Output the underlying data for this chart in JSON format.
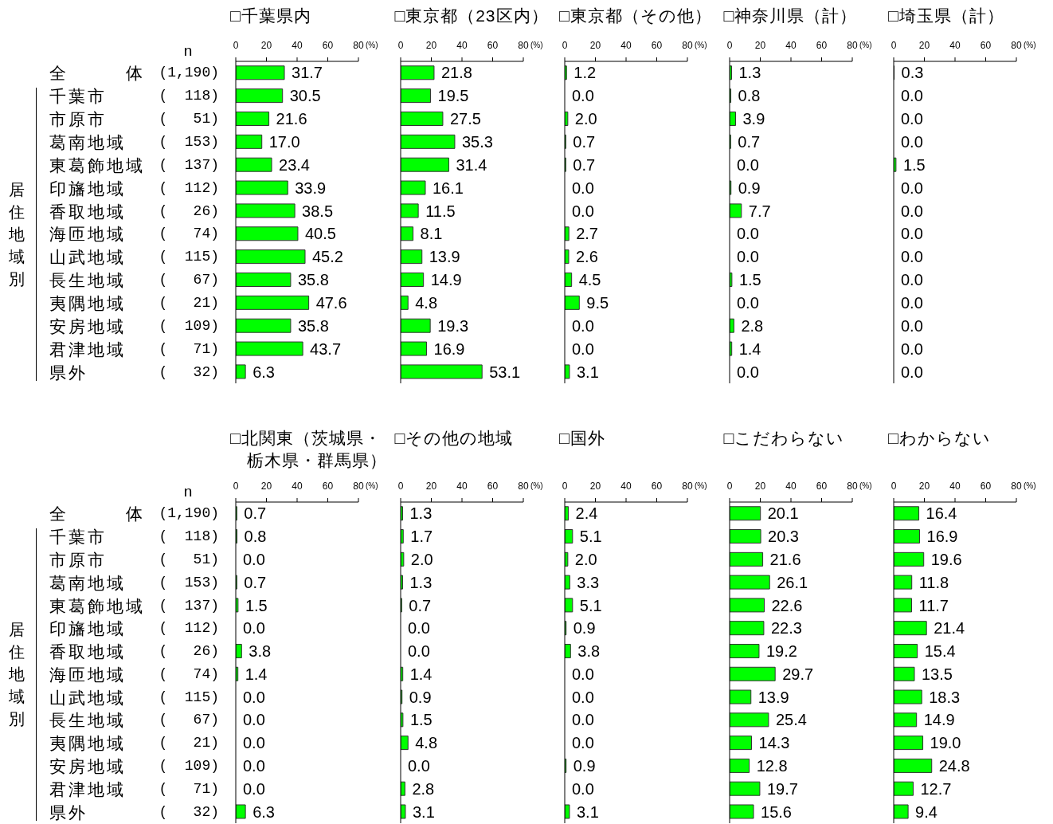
{
  "chart_data": [
    {
      "type": "bar",
      "orientation": "horizontal",
      "title": "□千葉県内",
      "ylabel": "居住地域別",
      "xlabel": "(%)",
      "annotations": [
        "n"
      ],
      "categories": [
        "全　　　体 (1,190)",
        "千葉市 (  118)",
        "市原市 (   51)",
        "葛南地域 (  153)",
        "東葛飾地域 (  137)",
        "印旛地域 (  112)",
        "香取地域 (   26)",
        "海匝地域 (   74)",
        "山武地域 (  115)",
        "長生地域 (   67)",
        "夷隅地域 (   21)",
        "安房地域 (  109)",
        "君津地域 (   71)",
        "県外 (   32)"
      ],
      "values": [
        31.7,
        30.5,
        21.6,
        17.0,
        23.4,
        33.9,
        38.5,
        40.5,
        45.2,
        35.8,
        47.6,
        35.8,
        43.7,
        6.3
      ],
      "value_labels": [
        "31.7",
        "30.5",
        "21.6",
        "17.0",
        "23.4",
        "33.9",
        "38.5",
        "40.5",
        "45.2",
        "35.8",
        "47.6",
        "35.8",
        "43.7",
        "6.3"
      ],
      "color": "#00ff00",
      "xlim": [
        0,
        80
      ],
      "xticks": [
        0,
        20,
        40,
        60,
        80
      ]
    },
    {
      "type": "bar",
      "orientation": "horizontal",
      "title": "□東京都（23区内）",
      "xlabel": "(%)",
      "categories": [
        null,
        null,
        null,
        null,
        null,
        null,
        null,
        null,
        null,
        null,
        null,
        null,
        null,
        null
      ],
      "values": [
        21.8,
        19.5,
        27.5,
        35.3,
        31.4,
        16.1,
        11.5,
        8.1,
        13.9,
        14.9,
        4.8,
        19.3,
        16.9,
        53.1
      ],
      "value_labels": [
        "21.8",
        "19.5",
        "27.5",
        "35.3",
        "31.4",
        "16.1",
        "11.5",
        "8.1",
        "13.9",
        "14.9",
        "4.8",
        "19.3",
        "16.9",
        "53.1"
      ],
      "color": "#00ff00",
      "xlim": [
        0,
        80
      ],
      "xticks": [
        0,
        20,
        40,
        60,
        80
      ]
    },
    {
      "type": "bar",
      "orientation": "horizontal",
      "title": "□東京都（その他）",
      "xlabel": "(%)",
      "categories": [
        null,
        null,
        null,
        null,
        null,
        null,
        null,
        null,
        null,
        null,
        null,
        null,
        null,
        null
      ],
      "values": [
        1.2,
        0.0,
        2.0,
        0.7,
        0.7,
        0.0,
        0.0,
        2.7,
        2.6,
        4.5,
        9.5,
        0.0,
        0.0,
        3.1
      ],
      "value_labels": [
        "1.2",
        "0.0",
        "2.0",
        "0.7",
        "0.7",
        "0.0",
        "0.0",
        "2.7",
        "2.6",
        "4.5",
        "9.5",
        "0.0",
        "0.0",
        "3.1"
      ],
      "color": "#00ff00",
      "xlim": [
        0,
        80
      ],
      "xticks": [
        0,
        20,
        40,
        60,
        80
      ]
    },
    {
      "type": "bar",
      "orientation": "horizontal",
      "title": "□神奈川県（計）",
      "xlabel": "(%)",
      "categories": [
        null,
        null,
        null,
        null,
        null,
        null,
        null,
        null,
        null,
        null,
        null,
        null,
        null,
        null
      ],
      "values": [
        1.3,
        0.8,
        3.9,
        0.7,
        0.0,
        0.9,
        7.7,
        0.0,
        0.0,
        1.5,
        0.0,
        2.8,
        1.4,
        0.0
      ],
      "value_labels": [
        "1.3",
        "0.8",
        "3.9",
        "0.7",
        "0.0",
        "0.9",
        "7.7",
        "0.0",
        "0.0",
        "1.5",
        "0.0",
        "2.8",
        "1.4",
        "0.0"
      ],
      "color": "#00ff00",
      "xlim": [
        0,
        80
      ],
      "xticks": [
        0,
        20,
        40,
        60,
        80
      ]
    },
    {
      "type": "bar",
      "orientation": "horizontal",
      "title": "□埼玉県（計）",
      "xlabel": "(%)",
      "categories": [
        null,
        null,
        null,
        null,
        null,
        null,
        null,
        null,
        null,
        null,
        null,
        null,
        null,
        null
      ],
      "values": [
        0.3,
        0.0,
        0.0,
        0.0,
        1.5,
        0.0,
        0.0,
        0.0,
        0.0,
        0.0,
        0.0,
        0.0,
        0.0,
        0.0
      ],
      "value_labels": [
        "0.3",
        "0.0",
        "0.0",
        "0.0",
        "1.5",
        "0.0",
        "0.0",
        "0.0",
        "0.0",
        "0.0",
        "0.0",
        "0.0",
        "0.0",
        "0.0"
      ],
      "color": "#00ff00",
      "xlim": [
        0,
        80
      ],
      "xticks": [
        0,
        20,
        40,
        60,
        80
      ]
    },
    {
      "type": "bar",
      "orientation": "horizontal",
      "title": "□北関東（茨城県・栃木県・群馬県）",
      "ylabel": "居住地域別",
      "xlabel": "(%)",
      "annotations": [
        "n"
      ],
      "categories": [
        "全　　　体 (1,190)",
        "千葉市 (  118)",
        "市原市 (   51)",
        "葛南地域 (  153)",
        "東葛飾地域 (  137)",
        "印旛地域 (  112)",
        "香取地域 (   26)",
        "海匝地域 (   74)",
        "山武地域 (  115)",
        "長生地域 (   67)",
        "夷隅地域 (   21)",
        "安房地域 (  109)",
        "君津地域 (   71)",
        "県外 (   32)"
      ],
      "values": [
        0.7,
        0.8,
        0.0,
        0.7,
        1.5,
        0.0,
        3.8,
        1.4,
        0.0,
        0.0,
        0.0,
        0.0,
        0.0,
        6.3
      ],
      "value_labels": [
        "0.7",
        "0.8",
        "0.0",
        "0.7",
        "1.5",
        "0.0",
        "3.8",
        "1.4",
        "0.0",
        "0.0",
        "0.0",
        "0.0",
        "0.0",
        "6.3"
      ],
      "color": "#00ff00",
      "xlim": [
        0,
        80
      ],
      "xticks": [
        0,
        20,
        40,
        60,
        80
      ]
    },
    {
      "type": "bar",
      "orientation": "horizontal",
      "title": "□その他の地域",
      "xlabel": "(%)",
      "categories": [
        null,
        null,
        null,
        null,
        null,
        null,
        null,
        null,
        null,
        null,
        null,
        null,
        null,
        null
      ],
      "values": [
        1.3,
        1.7,
        2.0,
        1.3,
        0.7,
        0.0,
        0.0,
        1.4,
        0.9,
        1.5,
        4.8,
        0.0,
        2.8,
        3.1
      ],
      "value_labels": [
        "1.3",
        "1.7",
        "2.0",
        "1.3",
        "0.7",
        "0.0",
        "0.0",
        "1.4",
        "0.9",
        "1.5",
        "4.8",
        "0.0",
        "2.8",
        "3.1"
      ],
      "color": "#00ff00",
      "xlim": [
        0,
        80
      ],
      "xticks": [
        0,
        20,
        40,
        60,
        80
      ]
    },
    {
      "type": "bar",
      "orientation": "horizontal",
      "title": "□国外",
      "xlabel": "(%)",
      "categories": [
        null,
        null,
        null,
        null,
        null,
        null,
        null,
        null,
        null,
        null,
        null,
        null,
        null,
        null
      ],
      "values": [
        2.4,
        5.1,
        2.0,
        3.3,
        5.1,
        0.9,
        3.8,
        0.0,
        0.0,
        0.0,
        0.0,
        0.9,
        0.0,
        3.1
      ],
      "value_labels": [
        "2.4",
        "5.1",
        "2.0",
        "3.3",
        "5.1",
        "0.9",
        "3.8",
        "0.0",
        "0.0",
        "0.0",
        "0.0",
        "0.9",
        "0.0",
        "3.1"
      ],
      "color": "#00ff00",
      "xlim": [
        0,
        80
      ],
      "xticks": [
        0,
        20,
        40,
        60,
        80
      ]
    },
    {
      "type": "bar",
      "orientation": "horizontal",
      "title": "□こだわらない",
      "xlabel": "(%)",
      "categories": [
        null,
        null,
        null,
        null,
        null,
        null,
        null,
        null,
        null,
        null,
        null,
        null,
        null,
        null
      ],
      "values": [
        20.1,
        20.3,
        21.6,
        26.1,
        22.6,
        22.3,
        19.2,
        29.7,
        13.9,
        25.4,
        14.3,
        12.8,
        19.7,
        15.6
      ],
      "value_labels": [
        "20.1",
        "20.3",
        "21.6",
        "26.1",
        "22.6",
        "22.3",
        "19.2",
        "29.7",
        "13.9",
        "25.4",
        "14.3",
        "12.8",
        "19.7",
        "15.6"
      ],
      "color": "#00ff00",
      "xlim": [
        0,
        80
      ],
      "xticks": [
        0,
        20,
        40,
        60,
        80
      ]
    },
    {
      "type": "bar",
      "orientation": "horizontal",
      "title": "□わからない",
      "xlabel": "(%)",
      "categories": [
        null,
        null,
        null,
        null,
        null,
        null,
        null,
        null,
        null,
        null,
        null,
        null,
        null,
        null
      ],
      "values": [
        16.4,
        16.9,
        19.6,
        11.8,
        11.7,
        21.4,
        15.4,
        13.5,
        18.3,
        14.9,
        19.0,
        24.8,
        12.7,
        9.4
      ],
      "value_labels": [
        "16.4",
        "16.9",
        "19.6",
        "11.8",
        "11.7",
        "21.4",
        "15.4",
        "13.5",
        "18.3",
        "14.9",
        "19.0",
        "24.8",
        "12.7",
        "9.4"
      ],
      "color": "#00ff00",
      "xlim": [
        0,
        80
      ],
      "xticks": [
        0,
        20,
        40,
        60,
        80
      ]
    }
  ]
}
